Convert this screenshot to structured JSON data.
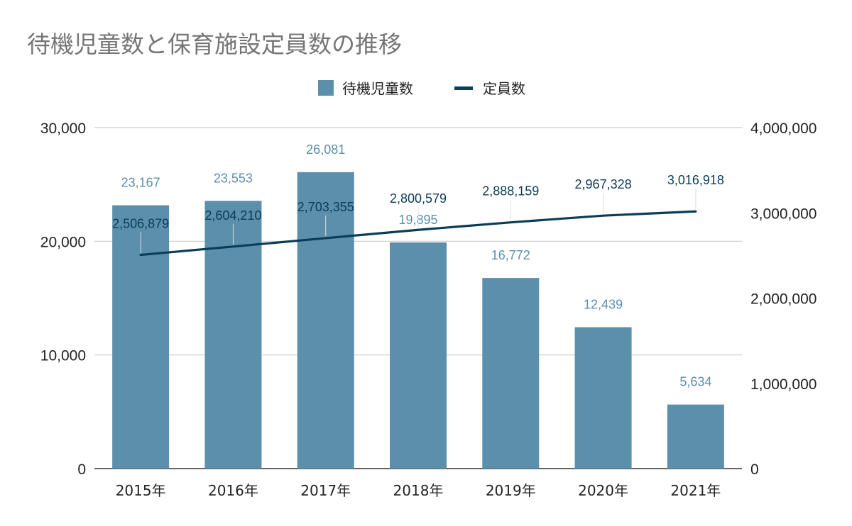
{
  "chart_data": {
    "type": "bar",
    "title": "待機児童数と保育施設定員数の推移",
    "categories": [
      "2015年",
      "2016年",
      "2017年",
      "2018年",
      "2019年",
      "2020年",
      "2021年"
    ],
    "series": [
      {
        "name": "待機児童数",
        "type": "bar",
        "axis": "left",
        "color": "#5b8fac",
        "values": [
          23167,
          23553,
          26081,
          19895,
          16772,
          12439,
          5634
        ],
        "labels": [
          "23,167",
          "23,553",
          "26,081",
          "19,895",
          "16,772",
          "12,439",
          "5,634"
        ]
      },
      {
        "name": "定員数",
        "type": "line",
        "axis": "right",
        "color": "#0b3d57",
        "values": [
          2506879,
          2604210,
          2703355,
          2800579,
          2888159,
          2967328,
          3016918
        ],
        "labels": [
          "2,506,879",
          "2,604,210",
          "2,703,355",
          "2,800,579",
          "2,888,159",
          "2,967,328",
          "3,016,918"
        ]
      }
    ],
    "y_left": {
      "ylim": [
        0,
        30000
      ],
      "ticks": [
        0,
        10000,
        20000,
        30000
      ],
      "tick_labels": [
        "0",
        "10,000",
        "20,000",
        "30,000"
      ]
    },
    "y_right": {
      "ylim": [
        0,
        4000000
      ],
      "ticks": [
        0,
        1000000,
        2000000,
        3000000,
        4000000
      ],
      "tick_labels": [
        "0",
        "1,000,000",
        "2,000,000",
        "3,000,000",
        "4,000,000"
      ]
    },
    "xlabel": "",
    "ylabel": "",
    "grid": true,
    "legend": "top-center"
  }
}
